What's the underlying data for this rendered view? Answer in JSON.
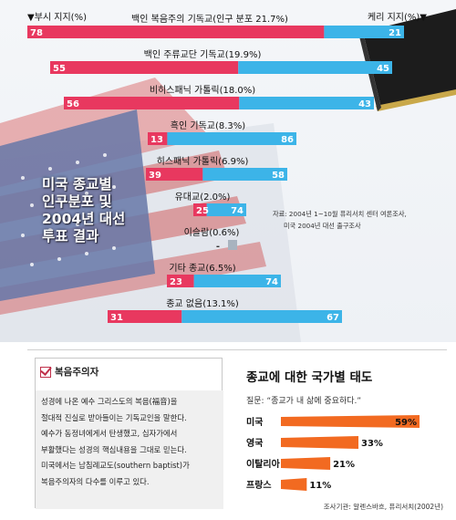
{
  "chart_data": [
    {
      "type": "bar",
      "subtype": "diverging-stacked-100",
      "title": "미국 종교별 인구분포 및 2004년 대선 투표 결과",
      "bush_header": "▼부시 지지(%)",
      "kerry_header": "케리 지지(%)▼",
      "series": [
        {
          "name": "부시 지지",
          "color": "#e8385f"
        },
        {
          "name": "케리 지지",
          "color": "#3cb4e8"
        }
      ],
      "categories": [
        {
          "label": "백인 복음주의 기독교(인구 분포 21.7%)",
          "population": 21.7,
          "bush": 78,
          "kerry": 21
        },
        {
          "label": "백인 주류교단 기독교(19.9%)",
          "population": 19.9,
          "bush": 55,
          "kerry": 45
        },
        {
          "label": "비히스패닉 가톨릭(18.0%)",
          "population": 18.0,
          "bush": 56,
          "kerry": 43
        },
        {
          "label": "흑인 기독교(8.3%)",
          "population": 8.3,
          "bush": 13,
          "kerry": 86
        },
        {
          "label": "히스패닉 가톨릭(6.9%)",
          "population": 6.9,
          "bush": 39,
          "kerry": 58
        },
        {
          "label": "유대교(2.0%)",
          "population": 2.0,
          "bush": 25,
          "kerry": 74
        },
        {
          "label": "이슬람(0.6%)",
          "population": 0.6,
          "bush": null,
          "kerry": null,
          "bush_text": "-",
          "kerry_text": ""
        },
        {
          "label": "기타 종교(6.5%)",
          "population": 6.5,
          "bush": 23,
          "kerry": 74
        },
        {
          "label": "종교 없음(13.1%)",
          "population": 13.1,
          "bush": 31,
          "kerry": 67
        }
      ],
      "source_lines": [
        "자료: 2004년 1~10월 퓨리서치 센터 여론조사,",
        "미국 2004년 대선 출구조사"
      ]
    },
    {
      "type": "bar",
      "orientation": "horizontal",
      "title": "종교에 대한 국가별 태도",
      "question": "질문: “종교가 내 삶에 중요하다.”",
      "color": "#f26a21",
      "categories": [
        "미국",
        "영국",
        "이탈리아",
        "프랑스"
      ],
      "values": [
        59,
        33,
        21,
        11
      ],
      "value_labels": [
        "59%",
        "33%",
        "21%",
        "11%"
      ],
      "note": "조사기관: 알렌스바흐, 퓨리서치(2002년)"
    }
  ],
  "title_lines": [
    "미국 종교별",
    "인구분포 및",
    "2004년 대선",
    "투표 결과"
  ],
  "evangelical": {
    "heading": "복음주의자",
    "lines": [
      "성경에 나온 예수 그리스도의 복음(福音)을",
      "절대적 진실로 받아들이는 기독교인을 말한다.",
      "예수가 동정녀에게서 탄생했고, 십자가에서",
      "부활했다는 성경의 핵심내용을 그대로 믿는다.",
      "미국에서는 남침례교도(southern baptist)가",
      "복음주의자의 다수를 이루고 있다."
    ]
  }
}
